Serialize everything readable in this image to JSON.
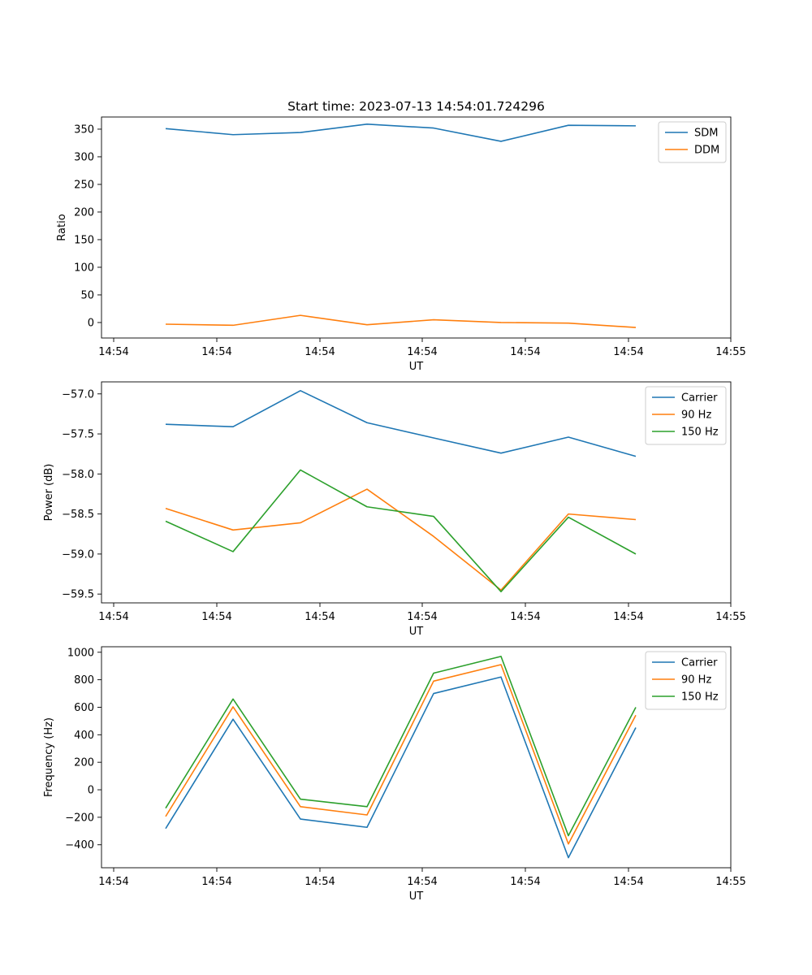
{
  "chart_data": [
    {
      "type": "line",
      "title": "Start time: 2023-07-13 14:54:01.724296",
      "xlabel": "UT",
      "ylabel": "Ratio",
      "xticklabels": [
        "14:54",
        "14:54",
        "14:54",
        "14:54",
        "14:54",
        "14:54",
        "14:55"
      ],
      "yticks": [
        0,
        50,
        100,
        150,
        200,
        250,
        300,
        350
      ],
      "ylim": [
        -28,
        372
      ],
      "legend_loc": "upper-right",
      "series": [
        {
          "name": "SDM",
          "color": "#1f77b4",
          "values": [
            351,
            340,
            344,
            359,
            352,
            328,
            357,
            356
          ]
        },
        {
          "name": "DDM",
          "color": "#ff7f0e",
          "values": [
            -3,
            -5,
            13,
            -4,
            5,
            0,
            -1,
            -9
          ]
        }
      ]
    },
    {
      "type": "line",
      "title": "",
      "xlabel": "UT",
      "ylabel": "Power (dB)",
      "xticklabels": [
        "14:54",
        "14:54",
        "14:54",
        "14:54",
        "14:54",
        "14:54",
        "14:55"
      ],
      "yticks": [
        -57.0,
        -57.5,
        -58.0,
        -58.5,
        -59.0,
        -59.5
      ],
      "ytickfmt": 1,
      "ylim": [
        -59.61,
        -56.85
      ],
      "legend_loc": "upper-right",
      "series": [
        {
          "name": "Carrier",
          "color": "#1f77b4",
          "values": [
            -57.38,
            -57.41,
            -56.96,
            -57.36,
            -57.55,
            -57.74,
            -57.54,
            -57.78
          ]
        },
        {
          "name": "90 Hz",
          "color": "#ff7f0e",
          "values": [
            -58.43,
            -58.7,
            -58.61,
            -58.19,
            -58.78,
            -59.45,
            -58.5,
            -58.57
          ]
        },
        {
          "name": "150 Hz",
          "color": "#2ca02c",
          "values": [
            -58.59,
            -58.97,
            -57.95,
            -58.41,
            -58.53,
            -59.47,
            -58.54,
            -59.0
          ]
        }
      ]
    },
    {
      "type": "line",
      "title": "",
      "xlabel": "UT",
      "ylabel": "Frequency (Hz)",
      "xticklabels": [
        "14:54",
        "14:54",
        "14:54",
        "14:54",
        "14:54",
        "14:54",
        "14:55"
      ],
      "yticks": [
        -400,
        -200,
        0,
        200,
        400,
        600,
        800,
        1000
      ],
      "ylim": [
        -567,
        1040
      ],
      "legend_loc": "upper-right",
      "series": [
        {
          "name": "Carrier",
          "color": "#1f77b4",
          "values": [
            -282,
            513,
            -213,
            -273,
            700,
            820,
            -494,
            452
          ]
        },
        {
          "name": "90 Hz",
          "color": "#ff7f0e",
          "values": [
            -194,
            603,
            -123,
            -183,
            790,
            910,
            -394,
            542
          ]
        },
        {
          "name": "150 Hz",
          "color": "#2ca02c",
          "values": [
            -134,
            660,
            -68,
            -123,
            848,
            970,
            -334,
            600
          ]
        }
      ]
    }
  ]
}
